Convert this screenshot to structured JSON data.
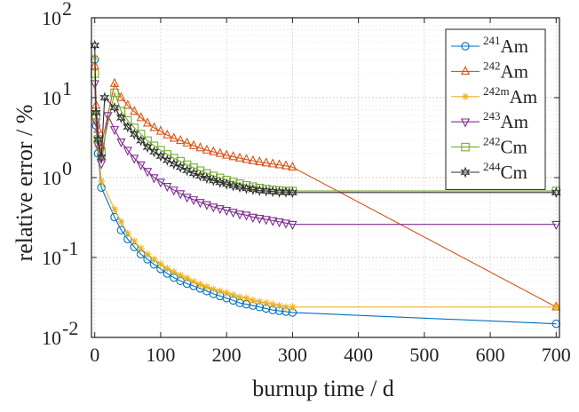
{
  "chart_data": {
    "type": "line",
    "xlabel": "burnup time / d",
    "ylabel": "relative error / %",
    "xlim": [
      -5,
      705
    ],
    "ylim": [
      0.01,
      100
    ],
    "yscale": "log",
    "grid": true,
    "legend_position": "top-right",
    "x_ticks": [
      0,
      100,
      200,
      300,
      400,
      500,
      600,
      700
    ],
    "x_tick_labels": [
      "0",
      "100",
      "200",
      "300",
      "400",
      "500",
      "600",
      "700"
    ],
    "y_ticks": [
      0.01,
      0.1,
      1,
      10,
      100
    ],
    "y_tick_labels": [
      {
        "base": "10",
        "exp": "-2"
      },
      {
        "base": "10",
        "exp": "-1"
      },
      {
        "base": "10",
        "exp": "0"
      },
      {
        "base": "10",
        "exp": "1"
      },
      {
        "base": "10",
        "exp": "2"
      }
    ],
    "series": [
      {
        "name": "241Am",
        "sup": "241",
        "element": "Am",
        "color": "#0072BD",
        "marker": "circle",
        "x": [
          0,
          2,
          5,
          10,
          30,
          40,
          50,
          60,
          70,
          80,
          90,
          100,
          110,
          120,
          130,
          140,
          150,
          160,
          170,
          180,
          190,
          200,
          210,
          220,
          230,
          240,
          250,
          260,
          270,
          280,
          290,
          300,
          700
        ],
        "y": [
          30,
          4.5,
          2,
          0.75,
          0.32,
          0.22,
          0.17,
          0.135,
          0.11,
          0.095,
          0.082,
          0.072,
          0.063,
          0.056,
          0.051,
          0.047,
          0.044,
          0.041,
          0.038,
          0.035,
          0.033,
          0.031,
          0.029,
          0.027,
          0.026,
          0.025,
          0.024,
          0.023,
          0.022,
          0.0215,
          0.021,
          0.0205,
          0.0148
        ]
      },
      {
        "name": "242Am",
        "sup": "242",
        "element": "Am",
        "color": "#D95319",
        "marker": "triangle-up",
        "x": [
          0,
          2,
          5,
          10,
          30,
          40,
          50,
          60,
          70,
          80,
          90,
          100,
          110,
          120,
          130,
          140,
          150,
          160,
          170,
          180,
          190,
          200,
          210,
          220,
          230,
          240,
          250,
          260,
          270,
          280,
          290,
          300,
          700
        ],
        "y": [
          25,
          8,
          4,
          2.5,
          15,
          10,
          8,
          6.7,
          5.6,
          4.8,
          4.2,
          3.8,
          3.4,
          3.1,
          2.9,
          2.7,
          2.5,
          2.35,
          2.2,
          2.1,
          2.0,
          1.9,
          1.82,
          1.75,
          1.68,
          1.62,
          1.57,
          1.52,
          1.48,
          1.44,
          1.4,
          1.35,
          0.024
        ]
      },
      {
        "name": "242mAm",
        "sup": "242m",
        "element": "Am",
        "color": "#EDB120",
        "marker": "asterisk",
        "x": [
          0,
          2,
          5,
          10,
          30,
          40,
          50,
          60,
          70,
          80,
          90,
          100,
          110,
          120,
          130,
          140,
          150,
          160,
          170,
          180,
          190,
          200,
          210,
          220,
          230,
          240,
          250,
          260,
          270,
          280,
          290,
          300,
          700
        ],
        "y": [
          32,
          5,
          2.4,
          0.9,
          0.4,
          0.28,
          0.2,
          0.16,
          0.13,
          0.11,
          0.095,
          0.083,
          0.073,
          0.066,
          0.06,
          0.055,
          0.05,
          0.046,
          0.043,
          0.04,
          0.038,
          0.036,
          0.034,
          0.032,
          0.031,
          0.029,
          0.028,
          0.027,
          0.026,
          0.025,
          0.024,
          0.024,
          0.024
        ]
      },
      {
        "name": "243Am",
        "sup": "243",
        "element": "Am",
        "color": "#7E2F8E",
        "marker": "triangle-down",
        "x": [
          0,
          2,
          5,
          10,
          20,
          30,
          40,
          50,
          60,
          70,
          80,
          90,
          100,
          110,
          120,
          130,
          140,
          150,
          160,
          170,
          180,
          190,
          200,
          210,
          220,
          230,
          240,
          250,
          260,
          270,
          280,
          290,
          300,
          700
        ],
        "y": [
          15,
          5,
          2.5,
          1.5,
          6,
          4,
          2.8,
          2.2,
          1.75,
          1.45,
          1.2,
          1.0,
          0.88,
          0.78,
          0.7,
          0.63,
          0.57,
          0.53,
          0.49,
          0.46,
          0.43,
          0.41,
          0.39,
          0.37,
          0.35,
          0.34,
          0.32,
          0.31,
          0.3,
          0.29,
          0.28,
          0.27,
          0.26,
          0.26
        ]
      },
      {
        "name": "242Cm",
        "sup": "242",
        "element": "Cm",
        "color": "#77AC30",
        "marker": "square",
        "x": [
          0,
          2,
          5,
          10,
          30,
          40,
          50,
          60,
          70,
          80,
          90,
          100,
          110,
          120,
          130,
          140,
          150,
          160,
          170,
          180,
          190,
          200,
          210,
          220,
          230,
          240,
          250,
          260,
          270,
          280,
          290,
          300,
          700
        ],
        "y": [
          20,
          6,
          3,
          2,
          11.5,
          6.8,
          5.2,
          4.2,
          3.5,
          2.9,
          2.5,
          2.2,
          1.95,
          1.75,
          1.6,
          1.45,
          1.33,
          1.22,
          1.13,
          1.05,
          0.99,
          0.93,
          0.88,
          0.84,
          0.8,
          0.77,
          0.74,
          0.72,
          0.7,
          0.69,
          0.68,
          0.68,
          0.68
        ]
      },
      {
        "name": "244Cm",
        "sup": "244",
        "element": "Cm",
        "color": "#2F2F2F",
        "marker": "hexagram",
        "x": [
          0,
          2,
          5,
          10,
          15,
          30,
          40,
          50,
          60,
          70,
          80,
          90,
          100,
          110,
          120,
          130,
          140,
          150,
          160,
          170,
          180,
          190,
          200,
          210,
          220,
          230,
          240,
          250,
          260,
          270,
          280,
          290,
          300,
          700
        ],
        "y": [
          45,
          6.5,
          3,
          1.8,
          10,
          7.5,
          5.6,
          4.3,
          3.5,
          2.9,
          2.4,
          2.1,
          1.85,
          1.65,
          1.48,
          1.35,
          1.23,
          1.13,
          1.05,
          0.98,
          0.92,
          0.87,
          0.83,
          0.79,
          0.76,
          0.73,
          0.71,
          0.69,
          0.68,
          0.67,
          0.66,
          0.66,
          0.65,
          0.65
        ]
      }
    ]
  }
}
